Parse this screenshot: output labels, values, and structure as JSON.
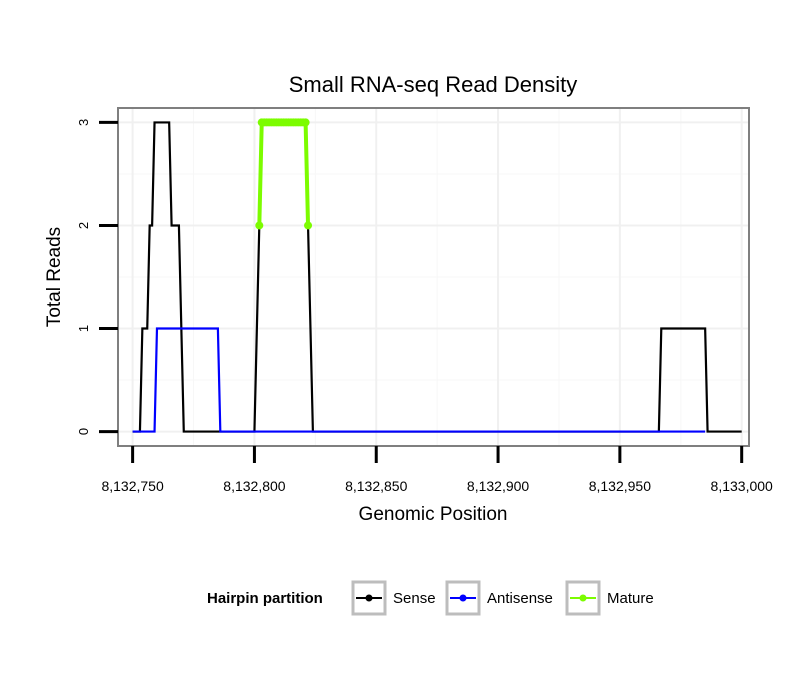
{
  "chart_data": {
    "type": "line",
    "title": "Small RNA-seq Read Density",
    "xlabel": "Genomic Position",
    "ylabel": "Total Reads",
    "xlim": [
      8132744,
      8133003
    ],
    "ylim": [
      -0.14,
      3.14
    ],
    "x_ticks": [
      8132750,
      8132800,
      8132850,
      8132900,
      8132950,
      8133000
    ],
    "x_tick_labels": [
      "8,132,750",
      "8,132,800",
      "8,132,850",
      "8,132,900",
      "8,132,950",
      "8,133,000"
    ],
    "y_ticks": [
      0,
      1,
      2,
      3
    ],
    "y_tick_labels": [
      "0",
      "1",
      "2",
      "3"
    ],
    "grid": true,
    "legend_position": "bottom",
    "legend_title": "Hairpin partition",
    "series": [
      {
        "name": "Sense",
        "color": "#000000",
        "points": [
          [
            8132750,
            0
          ],
          [
            8132753,
            0
          ],
          [
            8132754,
            1
          ],
          [
            8132756,
            1
          ],
          [
            8132757,
            2
          ],
          [
            8132758,
            2
          ],
          [
            8132759,
            3
          ],
          [
            8132765,
            3
          ],
          [
            8132766,
            2
          ],
          [
            8132769,
            2
          ],
          [
            8132770,
            1
          ],
          [
            8132771,
            0
          ],
          [
            8132800,
            0
          ],
          [
            8132801,
            1
          ],
          [
            8132802,
            2
          ],
          [
            8132803,
            3
          ],
          [
            8132821,
            3
          ],
          [
            8132822,
            2
          ],
          [
            8132823,
            1
          ],
          [
            8132824,
            0
          ],
          [
            8132966,
            0
          ],
          [
            8132967,
            1
          ],
          [
            8132985,
            1
          ],
          [
            8132986,
            0
          ],
          [
            8133000,
            0
          ]
        ]
      },
      {
        "name": "Antisense",
        "color": "#0000ff",
        "points": [
          [
            8132750,
            0
          ],
          [
            8132759,
            0
          ],
          [
            8132760,
            1
          ],
          [
            8132785,
            1
          ],
          [
            8132786,
            0
          ],
          [
            8132800,
            0
          ],
          [
            8132824,
            0
          ],
          [
            8132966,
            0
          ],
          [
            8132985,
            0
          ]
        ]
      },
      {
        "name": "Mature",
        "color": "#7cfc00",
        "points": [
          [
            8132802,
            2
          ],
          [
            8132803,
            3
          ],
          [
            8132804,
            3
          ],
          [
            8132805,
            3
          ],
          [
            8132806,
            3
          ],
          [
            8132807,
            3
          ],
          [
            8132808,
            3
          ],
          [
            8132809,
            3
          ],
          [
            8132810,
            3
          ],
          [
            8132811,
            3
          ],
          [
            8132812,
            3
          ],
          [
            8132813,
            3
          ],
          [
            8132814,
            3
          ],
          [
            8132815,
            3
          ],
          [
            8132816,
            3
          ],
          [
            8132817,
            3
          ],
          [
            8132818,
            3
          ],
          [
            8132819,
            3
          ],
          [
            8132820,
            3
          ],
          [
            8132821,
            3
          ],
          [
            8132822,
            2
          ]
        ]
      }
    ]
  }
}
